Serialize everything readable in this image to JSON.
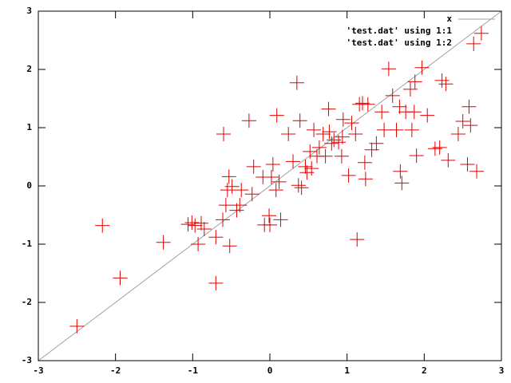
{
  "chart_data": {
    "type": "scatter",
    "xlim": [
      -3,
      3
    ],
    "ylim": [
      -3,
      3
    ],
    "xticks": [
      -3,
      -2,
      -1,
      0,
      1,
      2,
      3
    ],
    "yticks": [
      -3,
      -2,
      -1,
      0,
      1,
      2,
      3
    ],
    "grid": false,
    "legend": "top-right",
    "series": [
      {
        "name": "x",
        "style": "line",
        "color": "#a0a0a0",
        "x": [
          -3,
          3
        ],
        "values": [
          -3,
          3
        ]
      },
      {
        "name": "'test.dat' using 1:1",
        "style": "points",
        "color": "#00c000",
        "x": [],
        "values": []
      },
      {
        "name": "'test.dat' using 1:2",
        "style": "points",
        "color": "#e00000",
        "x": [
          -2.5,
          -2.17,
          -1.94,
          -1.38,
          -1.01,
          -0.97,
          -0.93,
          -0.89,
          -0.85,
          -1.06,
          -0.7,
          -0.7,
          -0.61,
          -0.6,
          -0.57,
          -0.53,
          -0.52,
          -0.55,
          -0.49,
          -0.43,
          -0.39,
          -0.37,
          -0.27,
          -0.23,
          -0.21,
          -0.09,
          -0.07,
          0.0,
          -0.01,
          0.02,
          0.04,
          0.08,
          0.09,
          0.12,
          0.14,
          0.24,
          0.3,
          0.35,
          0.37,
          0.39,
          0.41,
          0.46,
          0.48,
          0.52,
          0.54,
          0.57,
          0.61,
          0.64,
          0.69,
          0.72,
          0.76,
          0.77,
          0.8,
          0.83,
          0.89,
          0.93,
          0.95,
          1.02,
          1.06,
          1.11,
          1.13,
          1.16,
          1.2,
          1.23,
          1.24,
          1.27,
          1.32,
          1.38,
          1.45,
          1.48,
          1.54,
          1.59,
          1.64,
          1.68,
          1.69,
          1.71,
          1.76,
          1.82,
          1.84,
          1.87,
          1.9,
          1.97,
          2.04,
          2.14,
          2.2,
          2.23,
          2.28,
          2.31,
          2.44,
          2.5,
          2.56,
          2.58,
          2.6,
          2.64,
          2.68,
          2.74,
          1.88,
          0.94
        ],
        "values": [
          -2.41,
          -0.68,
          -1.58,
          -0.97,
          -0.63,
          -0.68,
          -1.0,
          -0.64,
          -0.74,
          -0.66,
          -1.67,
          -0.88,
          -0.58,
          0.89,
          -0.33,
          0.16,
          -1.03,
          -0.07,
          -0.01,
          -0.42,
          -0.33,
          -0.07,
          1.12,
          -0.14,
          0.33,
          0.15,
          -0.67,
          -0.67,
          -0.51,
          0.15,
          0.37,
          -0.07,
          1.21,
          0.07,
          -0.58,
          0.89,
          0.42,
          1.77,
          0.01,
          1.12,
          -0.03,
          0.33,
          0.23,
          0.59,
          0.3,
          0.96,
          0.51,
          0.66,
          0.89,
          0.51,
          1.32,
          0.93,
          0.73,
          0.79,
          0.75,
          0.51,
          1.14,
          0.18,
          1.08,
          0.89,
          -0.92,
          1.4,
          1.42,
          0.4,
          0.12,
          1.4,
          0.62,
          0.73,
          1.27,
          0.96,
          2.01,
          1.55,
          0.96,
          1.36,
          0.25,
          0.05,
          1.27,
          1.66,
          0.96,
          1.27,
          0.52,
          2.03,
          1.21,
          0.64,
          0.66,
          1.81,
          1.75,
          0.44,
          0.89,
          1.11,
          0.37,
          1.36,
          1.04,
          2.44,
          0.25,
          2.62,
          1.79,
          0.84
        ]
      }
    ]
  }
}
